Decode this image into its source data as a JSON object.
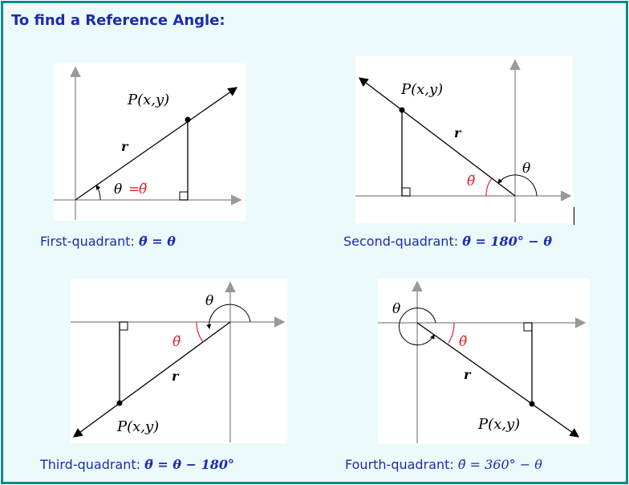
{
  "title": "To find a Reference Angle:",
  "labels": {
    "point": "P(x,y)",
    "radius": "r",
    "theta": "θ",
    "ref": "θ̃",
    "equals": "="
  },
  "captions": {
    "q1": {
      "label": "First-quadrant:",
      "formula": "θ̃ = θ"
    },
    "q2": {
      "label": "Second-quadrant:",
      "formula": "θ̃ = 180° − θ"
    },
    "q3": {
      "label": "Third-quadrant:",
      "formula": "θ̃ = θ − 180°"
    },
    "q4": {
      "label": "Fourth-quadrant:",
      "formula": "θ̃ = 360° − θ"
    }
  },
  "colors": {
    "title": "#1a2bb4",
    "border": "#0f8a86",
    "background": "#ecfafb",
    "reference": "#e8202a",
    "axis": "#999999"
  }
}
